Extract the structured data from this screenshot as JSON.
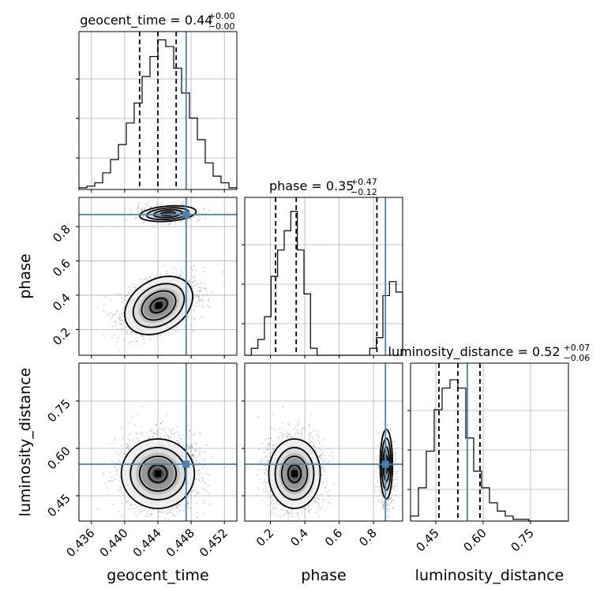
{
  "chart_data": {
    "type": "corner",
    "parameters": [
      {
        "key": "geocent_time",
        "label": "geocent_time",
        "range": [
          0.4345,
          0.4535
        ],
        "ticks": [
          0.436,
          0.44,
          0.444,
          0.448,
          0.452
        ],
        "tick_labels": [
          "0.436",
          "0.440",
          "0.444",
          "0.448",
          "0.452"
        ],
        "truth": 0.4474,
        "quantiles": [
          0.4418,
          0.444,
          0.4462
        ],
        "title": {
          "base": "geocent_time = 0.44",
          "plus": "+0.00",
          "minus": "−0.00"
        },
        "hist": [
          0.01,
          0.02,
          0.04,
          0.1,
          0.18,
          0.27,
          0.4,
          0.52,
          0.68,
          0.8,
          0.9,
          0.86,
          0.73,
          0.58,
          0.43,
          0.3,
          0.16,
          0.08,
          0.04,
          0.01
        ],
        "hist_max": 0.95
      },
      {
        "key": "phase",
        "label": "phase",
        "range": [
          0.05,
          0.97
        ],
        "ticks": [
          0.2,
          0.4,
          0.6,
          0.8
        ],
        "tick_labels": [
          "0.2",
          "0.4",
          "0.6",
          "0.8"
        ],
        "truth": 0.87,
        "quantiles": [
          0.23,
          0.35,
          0.82
        ],
        "title": {
          "base": "phase = 0.35",
          "plus": "+0.47",
          "minus": "−0.12"
        },
        "hist": [
          0,
          0.04,
          0.09,
          0.22,
          0.45,
          0.6,
          0.71,
          0.82,
          0.6,
          0.35,
          0.04,
          0,
          0,
          0,
          0,
          0,
          0,
          0,
          0,
          0.04,
          0.1,
          0.34,
          0.42,
          0.36
        ],
        "hist_max": 0.9
      },
      {
        "key": "luminosity_distance",
        "label": "luminosity_distance",
        "range": [
          0.37,
          0.87
        ],
        "ticks": [
          0.45,
          0.6,
          0.75
        ],
        "tick_labels": [
          "0.45",
          "0.60",
          "0.75"
        ],
        "truth": 0.55,
        "quantiles": [
          0.46,
          0.52,
          0.59
        ],
        "title": {
          "base": "luminosity_distance = 0.52",
          "plus": "+0.07",
          "minus": "−0.06"
        },
        "hist": [
          0.03,
          0.2,
          0.42,
          0.67,
          0.8,
          0.85,
          0.8,
          0.5,
          0.3,
          0.2,
          0.11,
          0.06,
          0.03,
          0.01,
          0.01,
          0,
          0,
          0,
          0,
          0
        ],
        "hist_max": 0.95
      }
    ],
    "colors": {
      "truth": "#4682b4",
      "line": "#000000",
      "grid": "#b0b0b0",
      "density": "#333333"
    },
    "grid": true
  }
}
